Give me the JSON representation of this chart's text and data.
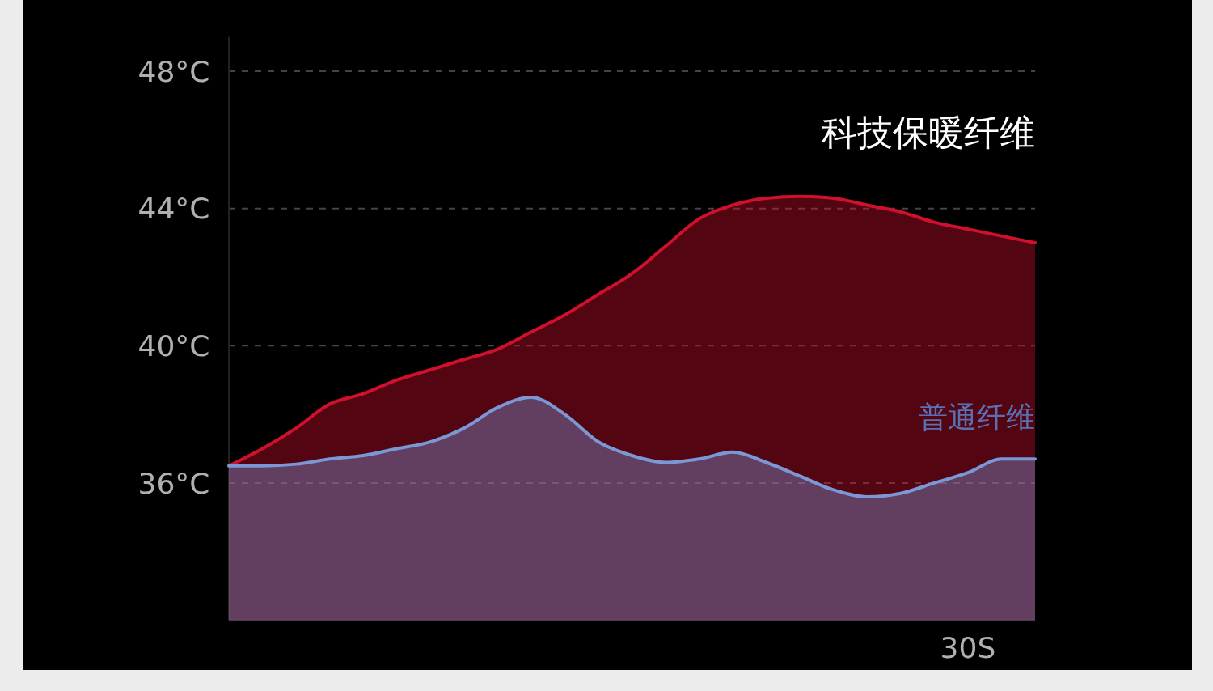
{
  "chart_data": {
    "type": "area",
    "categories": [
      null,
      null,
      null,
      null,
      null,
      null,
      null,
      null,
      null,
      null,
      null,
      null,
      null,
      null,
      null,
      null,
      null,
      null,
      null,
      null,
      null,
      null,
      "30S",
      null,
      null
    ],
    "series": [
      {
        "name": "科技保暖纤维",
        "color": "#d0102c",
        "values": [
          36.5,
          37.0,
          37.6,
          38.3,
          38.6,
          39.0,
          39.3,
          39.6,
          39.9,
          40.4,
          40.9,
          41.5,
          42.1,
          42.9,
          43.7,
          44.1,
          44.3,
          44.35,
          44.3,
          44.1,
          43.9,
          43.6,
          43.4,
          43.2,
          43.0
        ]
      },
      {
        "name": "普通纤维",
        "color": "#7b97d6",
        "values": [
          36.5,
          36.5,
          36.55,
          36.7,
          36.8,
          37.0,
          37.2,
          37.6,
          38.2,
          38.5,
          38.0,
          37.2,
          36.8,
          36.6,
          36.7,
          36.9,
          36.6,
          36.2,
          35.8,
          35.6,
          35.7,
          36.0,
          36.3,
          36.7,
          36.7
        ]
      }
    ],
    "ylim": [
      32,
      49
    ],
    "yticks": [
      {
        "value": 36,
        "label": "36°C"
      },
      {
        "value": 40,
        "label": "40°C"
      },
      {
        "value": 44,
        "label": "44°C"
      },
      {
        "value": 48,
        "label": "48°C"
      }
    ],
    "grid": "y",
    "legend": false
  }
}
